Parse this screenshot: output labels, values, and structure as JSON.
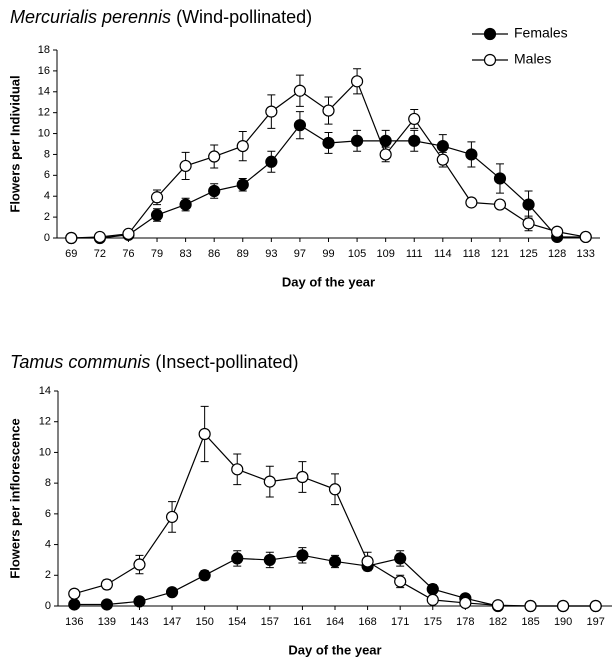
{
  "chart_data": [
    {
      "type": "line",
      "title": [
        "Mercurialis perennis",
        "(Wind-pollinated)"
      ],
      "x_label": "Day of the year",
      "y_label": "Flowers per Individual",
      "categories": [
        "69",
        "72",
        "76",
        "79",
        "83",
        "86",
        "89",
        "93",
        "97",
        "99",
        "105",
        "109",
        "111",
        "114",
        "118",
        "121",
        "125",
        "128",
        "133"
      ],
      "series": [
        {
          "name": "Females",
          "color": "#000000",
          "marker_fill": "#000000",
          "values": [
            0,
            0,
            0.3,
            2.2,
            3.2,
            4.5,
            5.1,
            7.3,
            10.8,
            9.1,
            9.3,
            9.3,
            9.3,
            8.8,
            8.0,
            5.7,
            3.2,
            0.1,
            0.1
          ],
          "errors": [
            0,
            0,
            0.1,
            0.6,
            0.6,
            0.7,
            0.6,
            1.0,
            1.3,
            1.0,
            1.0,
            1.0,
            1.0,
            1.1,
            1.2,
            1.4,
            1.3,
            0.1,
            0
          ]
        },
        {
          "name": "Males",
          "color": "#000000",
          "marker_fill": "#ffffff",
          "values": [
            0,
            0.1,
            0.4,
            3.9,
            6.9,
            7.8,
            8.8,
            12.1,
            14.1,
            12.2,
            15.0,
            8.0,
            11.4,
            7.5,
            3.4,
            3.2,
            1.4,
            0.6,
            0.1
          ],
          "errors": [
            0,
            0.1,
            0.2,
            0.7,
            1.3,
            1.1,
            1.4,
            1.6,
            1.5,
            1.3,
            1.2,
            0.7,
            0.9,
            0.7,
            0.4,
            0.4,
            0.7,
            0.2,
            0
          ]
        }
      ],
      "ylim": [
        0,
        18
      ],
      "yticks": [
        0,
        2,
        4,
        6,
        8,
        10,
        12,
        14,
        16,
        18
      ],
      "grid": false,
      "legend": "upper right"
    },
    {
      "type": "line",
      "title": [
        "Tamus communis",
        "(Insect-pollinated)"
      ],
      "x_label": "Day of the year",
      "y_label": "Flowers per inflorescence",
      "categories": [
        "136",
        "139",
        "143",
        "147",
        "150",
        "154",
        "157",
        "161",
        "164",
        "168",
        "171",
        "175",
        "178",
        "182",
        "185",
        "190",
        "197"
      ],
      "series": [
        {
          "color": "#000000",
          "marker_fill": "#000000",
          "values": [
            0.1,
            0.1,
            0.3,
            0.9,
            2.0,
            3.1,
            3.0,
            3.3,
            2.9,
            2.6,
            3.1,
            1.1,
            0.5,
            0,
            0,
            0,
            0
          ],
          "errors": [
            0.05,
            0.05,
            0.2,
            0.2,
            0.3,
            0.5,
            0.5,
            0.5,
            0.4,
            0.3,
            0.5,
            0.3,
            0.2,
            0,
            0,
            0,
            0
          ]
        },
        {
          "color": "#000000",
          "marker_fill": "#ffffff",
          "values": [
            0.8,
            1.4,
            2.7,
            5.8,
            11.2,
            8.9,
            8.1,
            8.4,
            7.6,
            2.9,
            1.6,
            0.4,
            0.2,
            0.05,
            0,
            0,
            0
          ],
          "errors": [
            0.1,
            0.3,
            0.6,
            1.0,
            1.8,
            1.0,
            1.0,
            1.0,
            1.0,
            0.6,
            0.4,
            0.2,
            0.1,
            0,
            0,
            0,
            0
          ]
        }
      ],
      "ylim": [
        0,
        14
      ],
      "yticks": [
        0,
        2,
        4,
        6,
        8,
        10,
        12,
        14
      ],
      "grid": false
    }
  ]
}
